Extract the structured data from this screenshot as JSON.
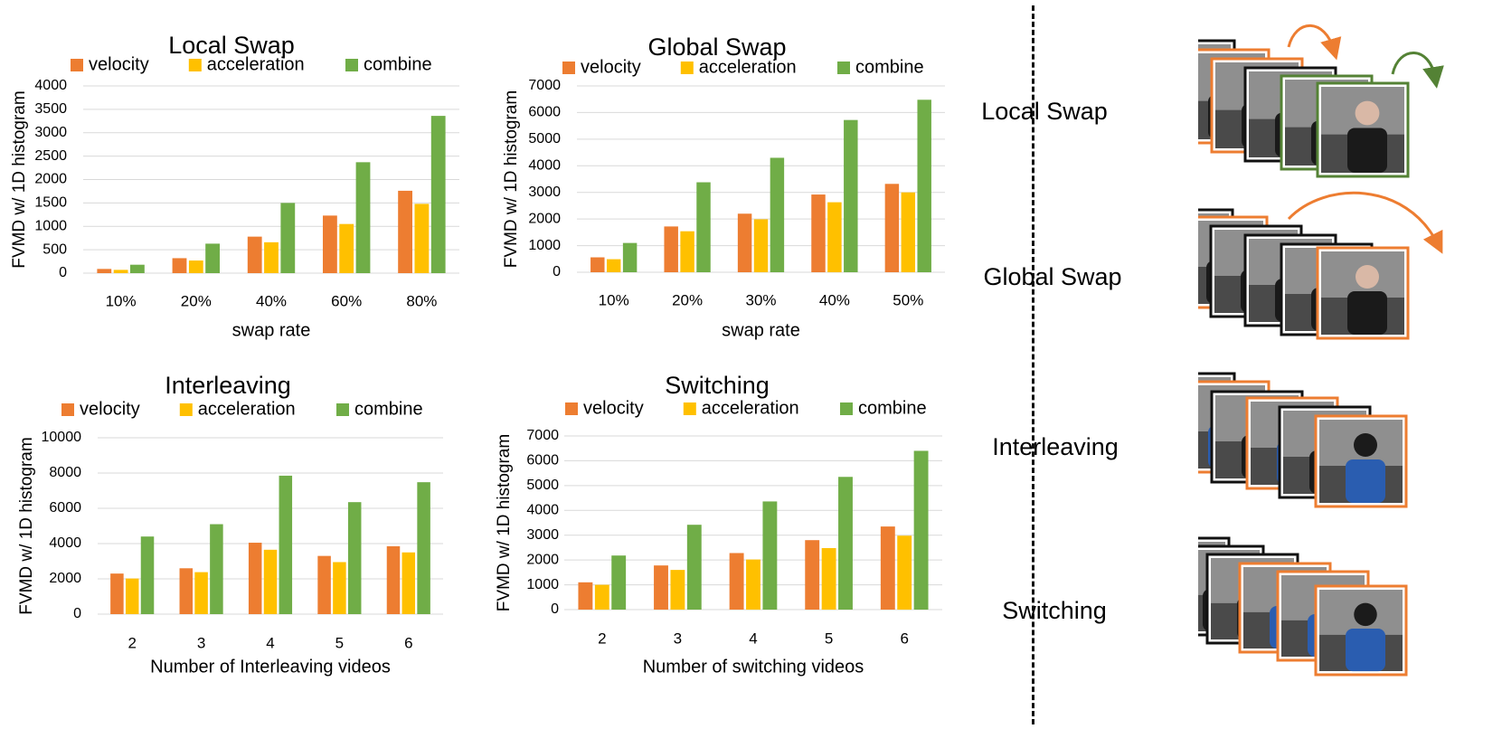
{
  "colors": {
    "velocity": "#ED7D31",
    "acceleration": "#FFC000",
    "combine": "#70AD47",
    "grid": "#D9D9D9",
    "frame_black": "#111111",
    "frame_orange": "#ED7D31",
    "frame_green": "#548235"
  },
  "chart_data": [
    {
      "id": "local-swap",
      "type": "bar",
      "title": "Local Swap",
      "xlabel": "swap rate",
      "ylabel": "FVMD w/ 1D histogram",
      "categories": [
        "10%",
        "20%",
        "40%",
        "60%",
        "80%"
      ],
      "ylim": [
        0,
        4000
      ],
      "yticks": [
        "0",
        "500",
        "1000",
        "1500",
        "2000",
        "2500",
        "3000",
        "3500",
        "4000"
      ],
      "grid": true,
      "legend": "top",
      "series": [
        {
          "name": "velocity",
          "values": [
            90,
            320,
            780,
            1230,
            1760
          ]
        },
        {
          "name": "acceleration",
          "values": [
            70,
            270,
            660,
            1050,
            1480
          ]
        },
        {
          "name": "combine",
          "values": [
            180,
            630,
            1500,
            2370,
            3360
          ]
        }
      ]
    },
    {
      "id": "global-swap",
      "type": "bar",
      "title": "Global Swap",
      "xlabel": "swap rate",
      "ylabel": "FVMD w/ 1D histogram",
      "categories": [
        "10%",
        "20%",
        "30%",
        "40%",
        "50%"
      ],
      "ylim": [
        0,
        7000
      ],
      "yticks": [
        "0",
        "1000",
        "2000",
        "3000",
        "4000",
        "5000",
        "6000",
        "7000"
      ],
      "grid": true,
      "legend": "top",
      "series": [
        {
          "name": "velocity",
          "values": [
            560,
            1720,
            2200,
            2920,
            3320
          ]
        },
        {
          "name": "acceleration",
          "values": [
            490,
            1540,
            1990,
            2630,
            3000
          ]
        },
        {
          "name": "combine",
          "values": [
            1100,
            3380,
            4300,
            5720,
            6480
          ]
        }
      ]
    },
    {
      "id": "interleaving",
      "type": "bar",
      "title": "Interleaving",
      "xlabel": "Number of Interleaving videos",
      "ylabel": "FVMD w/ 1D histogram",
      "categories": [
        "2",
        "3",
        "4",
        "5",
        "6"
      ],
      "ylim": [
        0,
        10000
      ],
      "yticks": [
        "0",
        "2000",
        "4000",
        "6000",
        "8000",
        "10000"
      ],
      "grid": true,
      "legend": "top",
      "series": [
        {
          "name": "velocity",
          "values": [
            2300,
            2600,
            4050,
            3300,
            3850
          ]
        },
        {
          "name": "acceleration",
          "values": [
            2020,
            2380,
            3650,
            2950,
            3500
          ]
        },
        {
          "name": "combine",
          "values": [
            4400,
            5100,
            7850,
            6350,
            7480
          ]
        }
      ]
    },
    {
      "id": "switching",
      "type": "bar",
      "title": "Switching",
      "xlabel": "Number of switching videos",
      "ylabel": "FVMD w/ 1D histogram",
      "categories": [
        "2",
        "3",
        "4",
        "5",
        "6"
      ],
      "ylim": [
        0,
        7000
      ],
      "yticks": [
        "0",
        "1000",
        "2000",
        "3000",
        "4000",
        "5000",
        "6000",
        "7000"
      ],
      "grid": true,
      "legend": "top",
      "series": [
        {
          "name": "velocity",
          "values": [
            1100,
            1780,
            2280,
            2800,
            3350
          ]
        },
        {
          "name": "acceleration",
          "values": [
            1000,
            1600,
            2020,
            2480,
            2980
          ]
        },
        {
          "name": "combine",
          "values": [
            2180,
            3420,
            4360,
            5350,
            6400
          ]
        }
      ]
    }
  ],
  "illustrations": [
    {
      "label": "Local Swap"
    },
    {
      "label": "Global Swap"
    },
    {
      "label": "Interleaving"
    },
    {
      "label": "Switching"
    }
  ]
}
